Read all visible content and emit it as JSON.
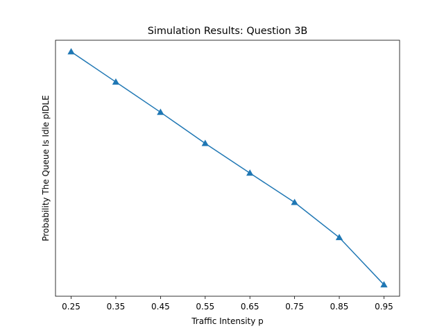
{
  "chart_data": {
    "type": "line",
    "title": "Simulation Results: Question 3B",
    "xlabel": "Traffic Intensity p",
    "ylabel": "Probability The Queue Is Idle pIDLE",
    "x": [
      0.25,
      0.35,
      0.45,
      0.55,
      0.65,
      0.75,
      0.85,
      0.95
    ],
    "x_tick_labels": [
      "0.25",
      "0.35",
      "0.45",
      "0.55",
      "0.65",
      "0.75",
      "0.85",
      "0.95"
    ],
    "series": [
      {
        "values": [
          0.75,
          0.65,
          0.55,
          0.447,
          0.349,
          0.252,
          0.136,
          -0.02
        ],
        "marker": "triangle-up",
        "color": "#1f77b4"
      }
    ],
    "xlim": [
      0.215,
      0.985
    ],
    "ylim": [
      -0.058,
      0.788
    ],
    "y_ticks_shown": false,
    "grid": false,
    "legend": false
  }
}
